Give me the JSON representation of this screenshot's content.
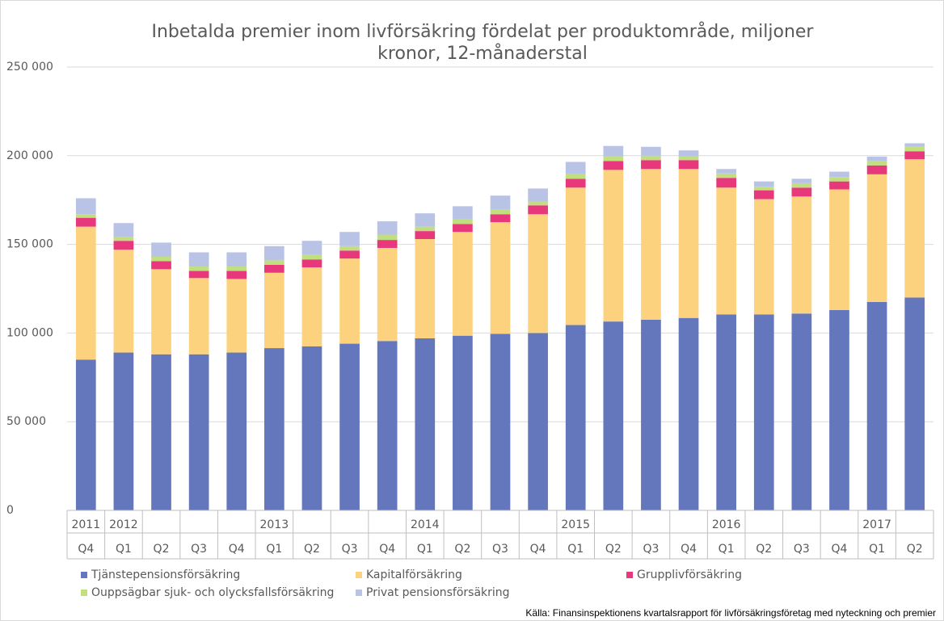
{
  "chart_data": {
    "type": "stacked_bar",
    "title": "Inbetalda premier inom livförsäkring fördelat per produktområde, miljoner kronor, 12-månaderstal",
    "categories": [
      "Q4",
      "Q1",
      "Q2",
      "Q3",
      "Q4",
      "Q1",
      "Q2",
      "Q3",
      "Q4",
      "Q1",
      "Q2",
      "Q3",
      "Q4",
      "Q1",
      "Q2",
      "Q3",
      "Q4",
      "Q1",
      "Q2",
      "Q3",
      "Q4",
      "Q1",
      "Q2"
    ],
    "years": [
      "2011",
      "2012",
      null,
      null,
      null,
      "2013",
      null,
      null,
      null,
      "2014",
      null,
      null,
      null,
      "2015",
      null,
      null,
      null,
      "2016",
      null,
      null,
      null,
      "2017",
      null
    ],
    "series": [
      {
        "name": "Tjänstepensionsförsäkring",
        "color": "#6477bd",
        "values": [
          85000,
          89000,
          88000,
          88000,
          89000,
          91500,
          92500,
          94000,
          95500,
          97000,
          98500,
          99500,
          100000,
          104500,
          106500,
          107500,
          108500,
          110500,
          110500,
          111000,
          113000,
          117500,
          120000
        ]
      },
      {
        "name": "Kapitalförsäkring",
        "color": "#fdd27f",
        "values": [
          75000,
          58000,
          48000,
          43000,
          41500,
          42500,
          44500,
          48000,
          52500,
          56000,
          58500,
          63000,
          67000,
          77500,
          85500,
          85000,
          84000,
          71500,
          65000,
          66000,
          68000,
          72000,
          78000
        ]
      },
      {
        "name": "Grupplivförsäkring",
        "color": "#e6387a",
        "values": [
          5000,
          5000,
          4500,
          4000,
          4500,
          4500,
          4500,
          4500,
          4500,
          4500,
          4500,
          4500,
          5000,
          5000,
          5000,
          5000,
          5000,
          5500,
          5000,
          5000,
          4500,
          5000,
          4500
        ]
      },
      {
        "name": "Ouppsägbar sjuk- och olycksfallsförsäkring",
        "color": "#c2df80",
        "values": [
          2000,
          2000,
          2500,
          2500,
          2500,
          2500,
          2500,
          2500,
          3000,
          2500,
          2500,
          2500,
          2000,
          2500,
          2500,
          2500,
          2000,
          2500,
          2000,
          2500,
          2500,
          2500,
          2500
        ]
      },
      {
        "name": "Privat pensionsförsäkring",
        "color": "#b9c3e6",
        "values": [
          9000,
          8000,
          8000,
          8000,
          8000,
          8000,
          8000,
          8000,
          7500,
          7500,
          7500,
          8000,
          7500,
          7000,
          6000,
          5000,
          3500,
          2500,
          3000,
          2500,
          3000,
          2500,
          2000
        ]
      }
    ],
    "ylim": [
      0,
      250000
    ],
    "yticks": [
      0,
      {
        "value": 50000,
        "label": "50 000"
      },
      {
        "value": 100000,
        "label": "100 000"
      },
      {
        "value": 150000,
        "label": "150 000"
      },
      {
        "value": 200000,
        "label": "200 000"
      },
      {
        "value": 250000,
        "label": "250 000"
      }
    ],
    "grid": true,
    "source": "Källa: Finansinspektionens kvartalsrapport för livförsäkringsföretag med nyteckning och premier"
  }
}
